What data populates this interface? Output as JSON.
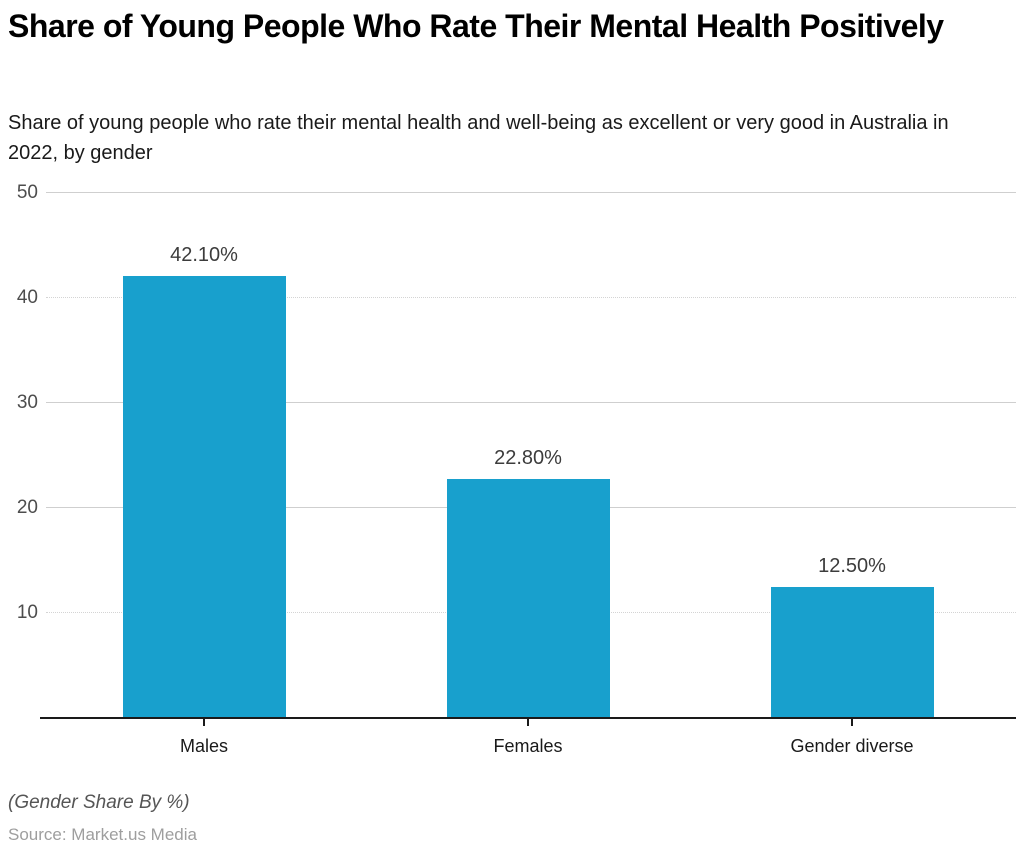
{
  "page": {
    "title": "Share of Young People Who Rate Their Mental Health Positively",
    "subtitle": "Share of young people who rate their mental health and well-being as excellent or very good in Australia in 2022, by gender",
    "footnote": "(Gender Share By %)",
    "source": "Source: Market.us Media"
  },
  "chart_data": {
    "type": "bar",
    "title": "Share of Young People Who Rate Their Mental Health Positively",
    "subtitle": "Share of young people who rate their mental health and well-being as excellent or very good in Australia in 2022, by gender",
    "categories": [
      "Males",
      "Females",
      "Gender diverse"
    ],
    "values": [
      42.1,
      22.8,
      12.5
    ],
    "value_labels": [
      "42.10%",
      "22.80%",
      "12.50%"
    ],
    "xlabel": "",
    "ylabel": "",
    "ylim": [
      0,
      50
    ],
    "yticks": [
      10,
      20,
      30,
      40,
      50
    ],
    "grid": true,
    "legend_position": "none",
    "bar_color": "#18A0CD",
    "axis_color": "#1a1a1a",
    "grid_color": "#cfcfcf",
    "footnote": "(Gender Share By %)",
    "source": "Source: Market.us Media"
  }
}
